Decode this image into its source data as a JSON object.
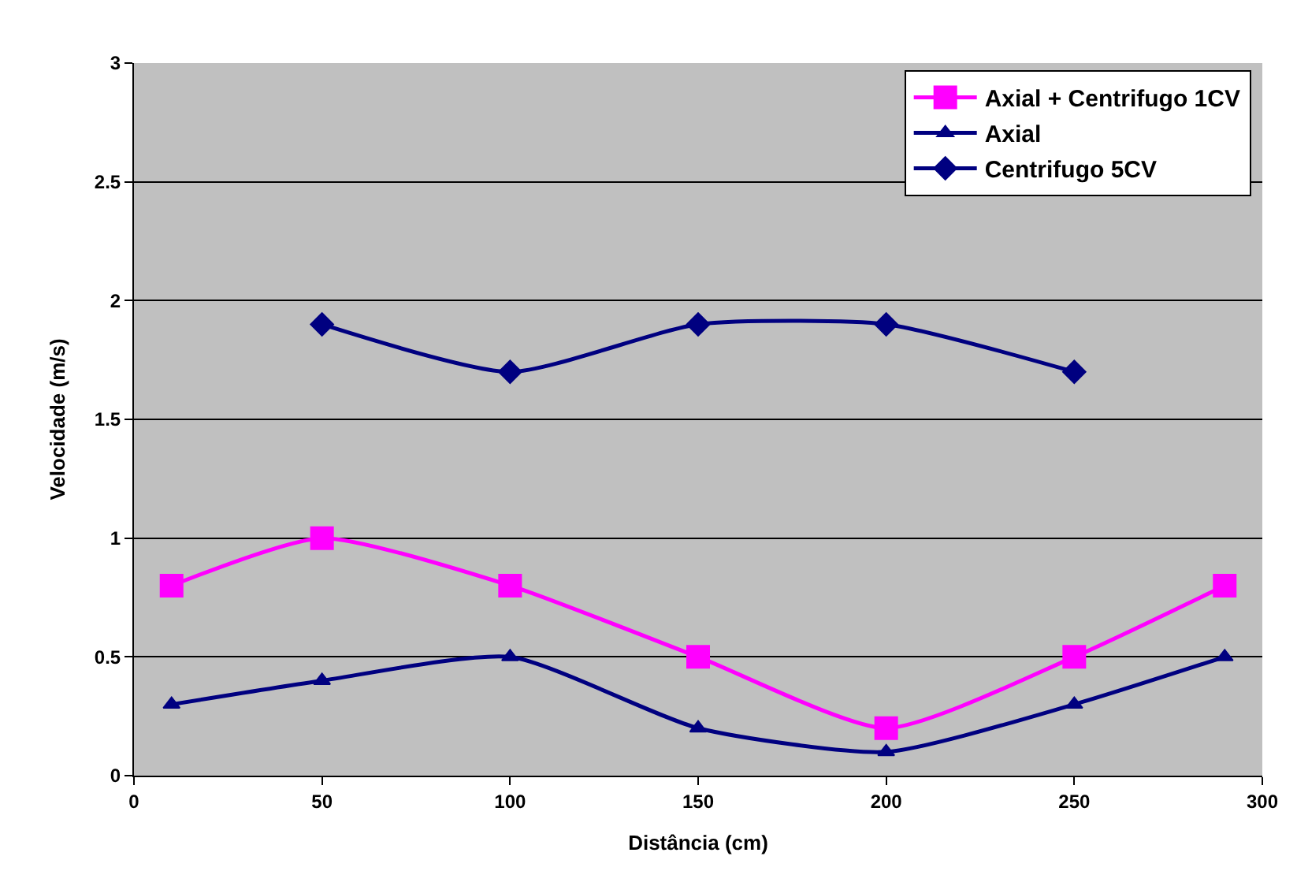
{
  "chart_data": {
    "type": "line",
    "xlabel": "Distância (cm)",
    "ylabel": "Velocidade (m/s)",
    "xlim": [
      0,
      300
    ],
    "xticks": [
      0,
      50,
      100,
      150,
      200,
      250,
      300
    ],
    "ylim": [
      0,
      3
    ],
    "yticks": [
      0,
      0.5,
      1,
      1.5,
      2,
      2.5,
      3
    ],
    "grid": "y",
    "legend": "top right",
    "series": [
      {
        "name": "Axial + Centrifugo 1CV",
        "color": "#ff00ff",
        "marker": "square",
        "x": [
          10,
          50,
          100,
          150,
          200,
          250,
          290
        ],
        "values": [
          0.8,
          1.0,
          0.8,
          0.5,
          0.2,
          0.5,
          0.8
        ]
      },
      {
        "name": "Axial",
        "color": "#000080",
        "marker": "triangle",
        "x": [
          10,
          50,
          100,
          150,
          200,
          250,
          290
        ],
        "values": [
          0.3,
          0.4,
          0.5,
          0.2,
          0.1,
          0.3,
          0.5
        ]
      },
      {
        "name": "Centrifugo 5CV",
        "color": "#000080",
        "marker": "diamond",
        "x": [
          50,
          100,
          150,
          200,
          250
        ],
        "values": [
          1.9,
          1.7,
          1.9,
          1.9,
          1.7
        ]
      }
    ]
  }
}
